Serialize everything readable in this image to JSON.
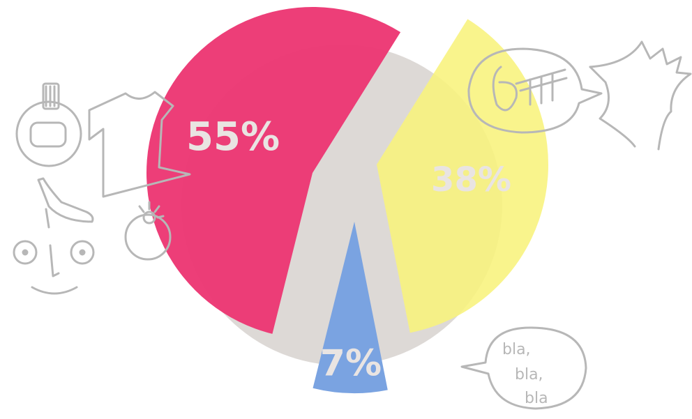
{
  "chart_data": {
    "type": "pie",
    "style": "exploded wedges over a grey base disc",
    "slices": [
      {
        "label": "55%",
        "value": 55,
        "color": "#ec3673"
      },
      {
        "label": "38%",
        "value": 38,
        "color": "#f8f27c"
      },
      {
        "label": "7%",
        "value": 7,
        "color": "#77a1e0"
      }
    ],
    "base_color": "#ddd9d6",
    "label_color": "#e9e4e2"
  },
  "doodles": {
    "speech_bubble_text": [
      "bla,",
      "bla,",
      "bla"
    ],
    "icons": [
      "perfume-bottle-icon",
      "tshirt-icon",
      "high-heel-shoe-icon",
      "ring-icon",
      "face-icon",
      "music-note-bubble-icon",
      "rooster-icon",
      "speech-bubble-icon"
    ]
  }
}
